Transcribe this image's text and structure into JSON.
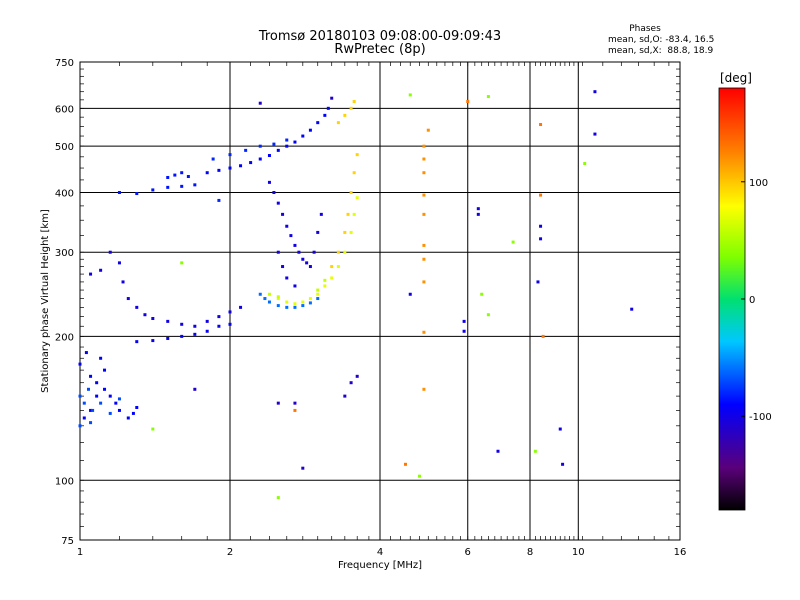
{
  "chart_data": {
    "type": "scatter",
    "title": "Tromsø 20180103 09:08:00-09:09:43",
    "subtitle": "RwPretec (8p)",
    "stats": {
      "heading": "Phases",
      "line_o": "mean, sd,O: -83.4, 16.5",
      "line_x": "mean, sd,X:  88.8, 18.9"
    },
    "xlabel": "Frequency [MHz]",
    "ylabel": "Stationary phase Virtual Height [km]",
    "x_scale": "log",
    "y_scale": "log",
    "xlim": [
      1,
      16
    ],
    "ylim": [
      75,
      750
    ],
    "x_ticks": [
      1,
      2,
      4,
      6,
      8,
      10,
      16
    ],
    "x_tick_labels": [
      "1",
      "2",
      "4",
      "6",
      "8",
      "10",
      "16"
    ],
    "y_ticks": [
      75,
      100,
      200,
      300,
      400,
      500,
      600,
      750
    ],
    "y_tick_labels": [
      "75",
      "100",
      "200",
      "300",
      "400",
      "500",
      "600",
      "750"
    ],
    "grid": true,
    "colorbar": {
      "label": "[deg]",
      "range": [
        -180,
        180
      ],
      "ticks": [
        100,
        0,
        -100
      ],
      "tick_labels": [
        "100",
        "0",
        "-100"
      ]
    },
    "series": [
      {
        "color_value": -90,
        "points": [
          [
            1.0,
            175
          ],
          [
            1.03,
            185
          ],
          [
            1.05,
            165
          ],
          [
            1.08,
            160
          ],
          [
            1.1,
            180
          ],
          [
            1.12,
            170
          ],
          [
            1.15,
            150
          ],
          [
            1.18,
            145
          ],
          [
            1.2,
            140
          ],
          [
            1.25,
            135
          ],
          [
            1.28,
            138
          ],
          [
            1.3,
            142
          ],
          [
            1.05,
            140
          ],
          [
            1.02,
            135
          ],
          [
            1.08,
            150
          ],
          [
            1.12,
            155
          ]
        ]
      },
      {
        "color_value": -70,
        "points": [
          [
            1.0,
            150
          ],
          [
            1.02,
            145
          ],
          [
            1.04,
            155
          ],
          [
            1.06,
            140
          ],
          [
            1.1,
            145
          ],
          [
            1.0,
            130
          ],
          [
            1.05,
            132
          ],
          [
            1.15,
            138
          ],
          [
            1.2,
            148
          ]
        ]
      },
      {
        "color_value": -100,
        "points": [
          [
            1.05,
            270
          ],
          [
            1.1,
            275
          ],
          [
            1.15,
            300
          ],
          [
            1.2,
            285
          ],
          [
            1.22,
            260
          ],
          [
            1.25,
            240
          ],
          [
            1.3,
            230
          ],
          [
            1.35,
            222
          ],
          [
            1.4,
            218
          ],
          [
            1.5,
            215
          ],
          [
            1.6,
            212
          ],
          [
            1.7,
            210
          ],
          [
            1.8,
            215
          ],
          [
            1.9,
            220
          ],
          [
            2.0,
            225
          ],
          [
            2.1,
            230
          ]
        ]
      },
      {
        "color_value": -95,
        "points": [
          [
            1.3,
            195
          ],
          [
            1.4,
            196
          ],
          [
            1.5,
            198
          ],
          [
            1.6,
            200
          ],
          [
            1.7,
            202
          ],
          [
            1.8,
            205
          ],
          [
            1.9,
            210
          ],
          [
            2.0,
            212
          ]
        ]
      },
      {
        "color_value": -85,
        "points": [
          [
            1.2,
            400
          ],
          [
            1.3,
            398
          ],
          [
            1.4,
            405
          ],
          [
            1.5,
            410
          ],
          [
            1.6,
            412
          ],
          [
            1.7,
            415
          ],
          [
            1.5,
            430
          ],
          [
            1.55,
            435
          ],
          [
            1.6,
            440
          ],
          [
            1.65,
            432
          ]
        ]
      },
      {
        "color_value": -90,
        "points": [
          [
            1.8,
            440
          ],
          [
            1.9,
            445
          ],
          [
            2.0,
            450
          ],
          [
            2.1,
            455
          ],
          [
            2.2,
            462
          ],
          [
            2.3,
            470
          ],
          [
            2.4,
            478
          ],
          [
            2.5,
            490
          ],
          [
            2.6,
            500
          ],
          [
            2.7,
            510
          ],
          [
            2.8,
            525
          ],
          [
            2.9,
            540
          ],
          [
            3.0,
            560
          ],
          [
            3.1,
            580
          ],
          [
            3.15,
            600
          ]
        ]
      },
      {
        "color_value": -80,
        "points": [
          [
            1.85,
            470
          ],
          [
            2.0,
            480
          ],
          [
            2.15,
            490
          ],
          [
            2.3,
            500
          ],
          [
            2.45,
            505
          ],
          [
            2.6,
            515
          ],
          [
            1.9,
            385
          ]
        ]
      },
      {
        "color_value": -100,
        "points": [
          [
            2.4,
            420
          ],
          [
            2.45,
            400
          ],
          [
            2.5,
            380
          ],
          [
            2.55,
            360
          ],
          [
            2.6,
            340
          ],
          [
            2.65,
            325
          ],
          [
            2.7,
            310
          ],
          [
            2.75,
            300
          ],
          [
            2.8,
            290
          ],
          [
            2.85,
            285
          ],
          [
            2.9,
            280
          ],
          [
            2.95,
            300
          ],
          [
            3.0,
            330
          ],
          [
            3.05,
            360
          ],
          [
            2.5,
            300
          ],
          [
            2.55,
            280
          ],
          [
            2.6,
            265
          ],
          [
            2.7,
            255
          ]
        ]
      },
      {
        "color_value": -60,
        "points": [
          [
            2.3,
            245
          ],
          [
            2.35,
            240
          ],
          [
            2.4,
            236
          ],
          [
            2.5,
            232
          ],
          [
            2.6,
            230
          ],
          [
            2.7,
            230
          ],
          [
            2.8,
            232
          ],
          [
            2.9,
            235
          ],
          [
            3.0,
            240
          ]
        ]
      },
      {
        "color_value": 70,
        "points": [
          [
            2.5,
            240
          ],
          [
            2.6,
            236
          ],
          [
            2.7,
            234
          ],
          [
            2.8,
            236
          ],
          [
            2.9,
            240
          ],
          [
            3.0,
            245
          ],
          [
            3.1,
            255
          ],
          [
            3.2,
            265
          ],
          [
            3.3,
            280
          ],
          [
            3.4,
            300
          ],
          [
            3.5,
            330
          ],
          [
            3.55,
            360
          ],
          [
            3.6,
            390
          ]
        ]
      },
      {
        "color_value": 95,
        "points": [
          [
            3.2,
            280
          ],
          [
            3.3,
            300
          ],
          [
            3.4,
            330
          ],
          [
            3.45,
            360
          ],
          [
            3.5,
            400
          ],
          [
            3.55,
            440
          ],
          [
            3.6,
            480
          ],
          [
            3.3,
            560
          ],
          [
            3.4,
            580
          ],
          [
            3.5,
            600
          ],
          [
            3.55,
            620
          ]
        ]
      },
      {
        "color_value": 60,
        "points": [
          [
            2.4,
            245
          ],
          [
            2.5,
            242
          ],
          [
            3.0,
            250
          ],
          [
            3.1,
            262
          ]
        ]
      },
      {
        "color_value": 120,
        "points": [
          [
            4.9,
            500
          ],
          [
            4.9,
            470
          ],
          [
            4.9,
            440
          ],
          [
            4.9,
            395
          ],
          [
            4.9,
            360
          ],
          [
            4.9,
            310
          ],
          [
            4.9,
            290
          ],
          [
            4.9,
            260
          ],
          [
            4.9,
            204
          ],
          [
            4.9,
            155
          ],
          [
            5.0,
            540
          ]
        ]
      },
      {
        "color_value": -100,
        "points": [
          [
            6.3,
            370
          ],
          [
            6.3,
            360
          ],
          [
            5.9,
            215
          ],
          [
            5.9,
            205
          ],
          [
            8.4,
            340
          ],
          [
            8.4,
            320
          ],
          [
            10.8,
            530
          ],
          [
            10.8,
            650
          ],
          [
            12.8,
            228
          ],
          [
            9.2,
            128
          ],
          [
            9.3,
            108
          ],
          [
            6.9,
            115
          ],
          [
            4.6,
            245
          ],
          [
            8.3,
            260
          ]
        ]
      },
      {
        "color_value": 40,
        "points": [
          [
            4.6,
            640
          ],
          [
            6.6,
            635
          ],
          [
            6.4,
            245
          ],
          [
            7.4,
            315
          ],
          [
            6.6,
            222
          ],
          [
            10.3,
            460
          ],
          [
            8.2,
            115
          ],
          [
            4.8,
            102
          ],
          [
            2.5,
            92
          ],
          [
            1.6,
            285
          ],
          [
            1.4,
            128
          ]
        ]
      },
      {
        "color_value": -110,
        "points": [
          [
            1.7,
            155
          ],
          [
            2.5,
            145
          ],
          [
            2.7,
            145
          ],
          [
            2.8,
            106
          ],
          [
            3.4,
            150
          ],
          [
            3.5,
            160
          ],
          [
            3.6,
            165
          ],
          [
            2.3,
            615
          ],
          [
            3.2,
            630
          ]
        ]
      },
      {
        "color_value": 130,
        "points": [
          [
            8.4,
            555
          ],
          [
            8.4,
            395
          ],
          [
            8.5,
            200
          ],
          [
            4.5,
            108
          ],
          [
            6.0,
            620
          ],
          [
            2.7,
            140
          ]
        ]
      }
    ]
  }
}
